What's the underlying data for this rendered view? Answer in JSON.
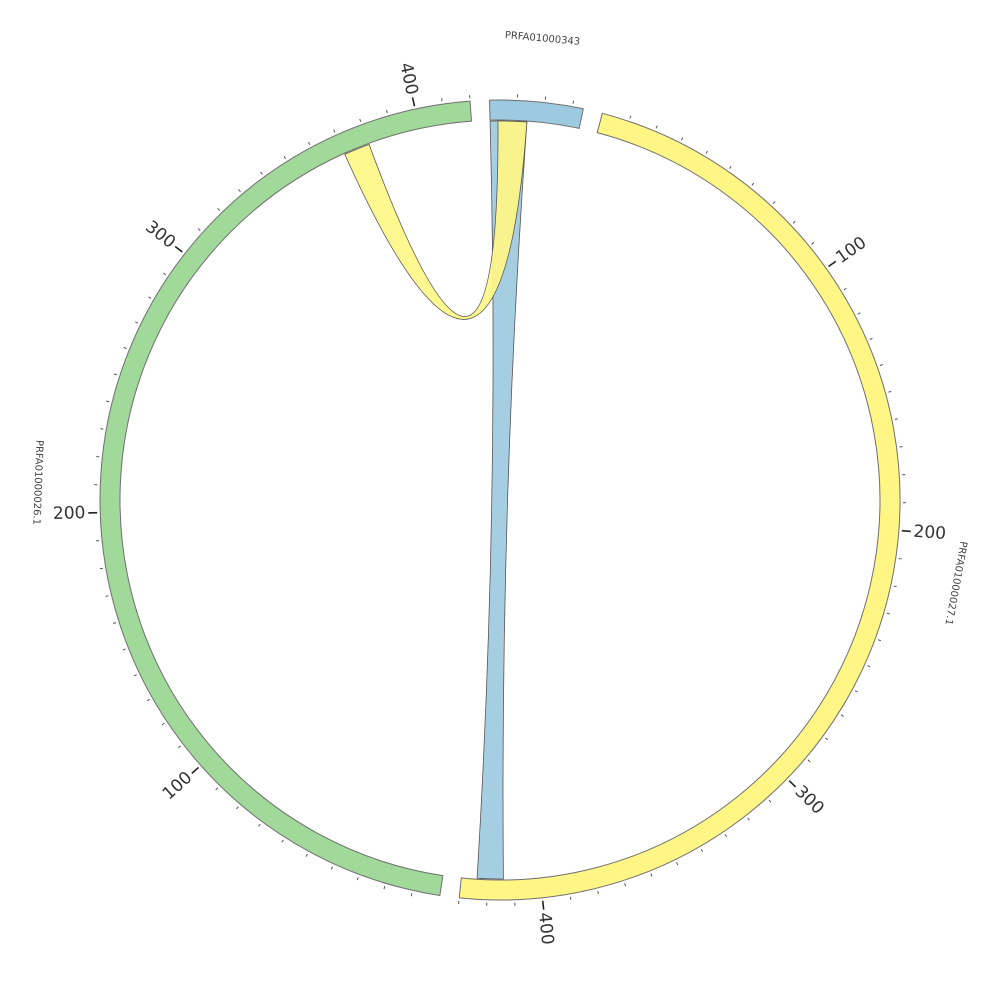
{
  "chart_data": {
    "type": "chord",
    "title": "",
    "segments": [
      {
        "name": "PRFA01000343",
        "length": 34,
        "color": "#9ecae1"
      },
      {
        "name": "PRFA01000027.1",
        "length": 430,
        "color": "#fff685"
      },
      {
        "name": "PRFA01000026.1",
        "length": 420,
        "color": "#a1d99b"
      }
    ],
    "tick_interval": 10,
    "major_tick_interval": 100,
    "tick_labels": {
      "PRFA01000027.1": [
        "100",
        "200",
        "300",
        "400"
      ],
      "PRFA01000026.1": [
        "100",
        "200",
        "300",
        "400"
      ]
    },
    "links": [
      {
        "source": {
          "segment": "PRFA01000343",
          "start": 0,
          "end": 14
        },
        "target": {
          "segment": "PRFA01000027.1",
          "start": 414,
          "end": 424
        },
        "color": "#9ecae1"
      },
      {
        "source": {
          "segment": "PRFA01000343",
          "start": 3,
          "end": 14
        },
        "target": {
          "segment": "PRFA01000026.1",
          "start": 370,
          "end": 380
        },
        "color": "#fff685"
      }
    ]
  }
}
